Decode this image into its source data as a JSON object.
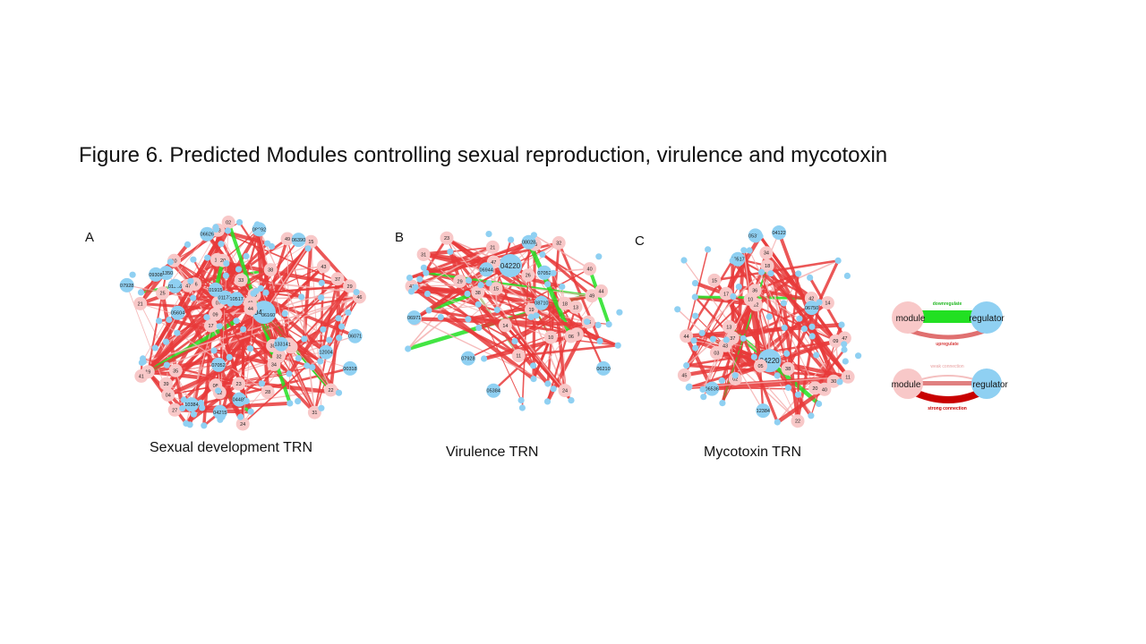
{
  "figure": {
    "title": "Figure 6. Predicted Modules controlling sexual reproduction, virulence and mycotoxin"
  },
  "colors": {
    "module": "#f8c8c8",
    "regulator": "#8fd0f2",
    "upregulate_edge": "#e83a3a",
    "downregulate_edge": "#22e022",
    "weak_edge": "#f4b0b0",
    "strong_edge": "#c80000"
  },
  "panels": [
    {
      "letter": "A",
      "caption": "Sexual development TRN",
      "hub_label": "04220",
      "labeled_modules": [
        "21",
        "17",
        "38",
        "18",
        "33",
        "19",
        "16",
        "04",
        "20",
        "13",
        "26",
        "03",
        "46",
        "30",
        "37",
        "09",
        "08",
        "07",
        "10",
        "49",
        "35",
        "31",
        "22",
        "11",
        "24",
        "47",
        "25",
        "34",
        "27",
        "29",
        "40",
        "12",
        "44",
        "41",
        "43",
        "32",
        "28",
        "39",
        "23",
        "15",
        "02"
      ],
      "labeled_regulators": [
        "05604",
        "07928",
        "01350",
        "06390",
        "08692",
        "06626",
        "01173",
        "00318",
        "07052",
        "10384",
        "13314",
        "01366",
        "09308",
        "06071",
        "01915",
        "04480",
        "10517",
        "06160",
        "12004",
        "04215"
      ]
    },
    {
      "letter": "B",
      "caption": "Virulence TRN",
      "hub_label": "04220",
      "labeled_modules": [
        "44",
        "21",
        "14",
        "03",
        "18",
        "39",
        "38",
        "40",
        "41",
        "23",
        "24",
        "10",
        "15",
        "29",
        "47",
        "49",
        "06",
        "19",
        "16",
        "35",
        "11",
        "32",
        "31",
        "26",
        "13"
      ],
      "labeled_regulators": [
        "08028",
        "06971",
        "05384",
        "06944",
        "07928",
        "06210",
        "07052",
        "08710"
      ]
    },
    {
      "letter": "C",
      "caption": "Mycotoxin TRN",
      "hub_label": "04220",
      "labeled_modules": [
        "11",
        "20",
        "03",
        "09",
        "13",
        "30",
        "38",
        "05",
        "45",
        "15",
        "44",
        "40",
        "12",
        "36",
        "42",
        "47",
        "43",
        "37",
        "14",
        "22",
        "18",
        "17",
        "10",
        "02",
        "34"
      ],
      "labeled_regulators": [
        "05369",
        "06536",
        "12384",
        "10517",
        "06750",
        "04122"
      ]
    }
  ],
  "legend": {
    "top": {
      "module_label": "module",
      "regulator_label": "regulator",
      "down_label": "downregulate",
      "up_label": "upregulate"
    },
    "bottom": {
      "module_label": "module",
      "regulator_label": "regulator",
      "weak_label": "weak connection",
      "strong_label": "strong connection"
    }
  }
}
